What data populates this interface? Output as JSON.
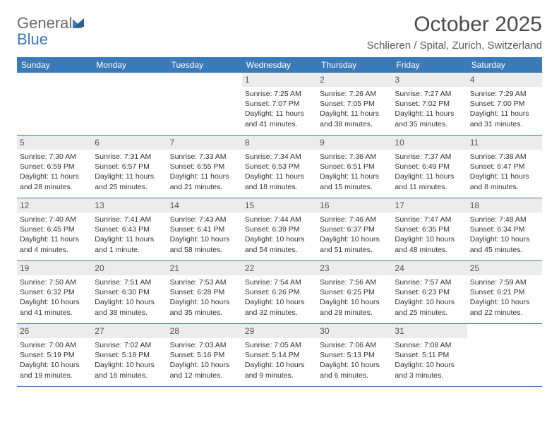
{
  "brand": {
    "name_part1": "General",
    "name_part2": "Blue",
    "color_general": "#6a6a6a",
    "color_blue": "#3a7ab8"
  },
  "title": "October 2025",
  "location": "Schlieren / Spital, Zurich, Switzerland",
  "colors": {
    "header_bar": "#3a7ab8",
    "day_num_bg": "#ececec",
    "text": "#333333",
    "border": "#3a7ab8"
  },
  "days_of_week": [
    "Sunday",
    "Monday",
    "Tuesday",
    "Wednesday",
    "Thursday",
    "Friday",
    "Saturday"
  ],
  "weeks": [
    [
      {
        "n": "",
        "sr": "",
        "ss": "",
        "dl": ""
      },
      {
        "n": "",
        "sr": "",
        "ss": "",
        "dl": ""
      },
      {
        "n": "",
        "sr": "",
        "ss": "",
        "dl": ""
      },
      {
        "n": "1",
        "sr": "Sunrise: 7:25 AM",
        "ss": "Sunset: 7:07 PM",
        "dl": "Daylight: 11 hours and 41 minutes."
      },
      {
        "n": "2",
        "sr": "Sunrise: 7:26 AM",
        "ss": "Sunset: 7:05 PM",
        "dl": "Daylight: 11 hours and 38 minutes."
      },
      {
        "n": "3",
        "sr": "Sunrise: 7:27 AM",
        "ss": "Sunset: 7:02 PM",
        "dl": "Daylight: 11 hours and 35 minutes."
      },
      {
        "n": "4",
        "sr": "Sunrise: 7:29 AM",
        "ss": "Sunset: 7:00 PM",
        "dl": "Daylight: 11 hours and 31 minutes."
      }
    ],
    [
      {
        "n": "5",
        "sr": "Sunrise: 7:30 AM",
        "ss": "Sunset: 6:59 PM",
        "dl": "Daylight: 11 hours and 28 minutes."
      },
      {
        "n": "6",
        "sr": "Sunrise: 7:31 AM",
        "ss": "Sunset: 6:57 PM",
        "dl": "Daylight: 11 hours and 25 minutes."
      },
      {
        "n": "7",
        "sr": "Sunrise: 7:33 AM",
        "ss": "Sunset: 6:55 PM",
        "dl": "Daylight: 11 hours and 21 minutes."
      },
      {
        "n": "8",
        "sr": "Sunrise: 7:34 AM",
        "ss": "Sunset: 6:53 PM",
        "dl": "Daylight: 11 hours and 18 minutes."
      },
      {
        "n": "9",
        "sr": "Sunrise: 7:36 AM",
        "ss": "Sunset: 6:51 PM",
        "dl": "Daylight: 11 hours and 15 minutes."
      },
      {
        "n": "10",
        "sr": "Sunrise: 7:37 AM",
        "ss": "Sunset: 6:49 PM",
        "dl": "Daylight: 11 hours and 11 minutes."
      },
      {
        "n": "11",
        "sr": "Sunrise: 7:38 AM",
        "ss": "Sunset: 6:47 PM",
        "dl": "Daylight: 11 hours and 8 minutes."
      }
    ],
    [
      {
        "n": "12",
        "sr": "Sunrise: 7:40 AM",
        "ss": "Sunset: 6:45 PM",
        "dl": "Daylight: 11 hours and 4 minutes."
      },
      {
        "n": "13",
        "sr": "Sunrise: 7:41 AM",
        "ss": "Sunset: 6:43 PM",
        "dl": "Daylight: 11 hours and 1 minute."
      },
      {
        "n": "14",
        "sr": "Sunrise: 7:43 AM",
        "ss": "Sunset: 6:41 PM",
        "dl": "Daylight: 10 hours and 58 minutes."
      },
      {
        "n": "15",
        "sr": "Sunrise: 7:44 AM",
        "ss": "Sunset: 6:39 PM",
        "dl": "Daylight: 10 hours and 54 minutes."
      },
      {
        "n": "16",
        "sr": "Sunrise: 7:46 AM",
        "ss": "Sunset: 6:37 PM",
        "dl": "Daylight: 10 hours and 51 minutes."
      },
      {
        "n": "17",
        "sr": "Sunrise: 7:47 AM",
        "ss": "Sunset: 6:35 PM",
        "dl": "Daylight: 10 hours and 48 minutes."
      },
      {
        "n": "18",
        "sr": "Sunrise: 7:48 AM",
        "ss": "Sunset: 6:34 PM",
        "dl": "Daylight: 10 hours and 45 minutes."
      }
    ],
    [
      {
        "n": "19",
        "sr": "Sunrise: 7:50 AM",
        "ss": "Sunset: 6:32 PM",
        "dl": "Daylight: 10 hours and 41 minutes."
      },
      {
        "n": "20",
        "sr": "Sunrise: 7:51 AM",
        "ss": "Sunset: 6:30 PM",
        "dl": "Daylight: 10 hours and 38 minutes."
      },
      {
        "n": "21",
        "sr": "Sunrise: 7:53 AM",
        "ss": "Sunset: 6:28 PM",
        "dl": "Daylight: 10 hours and 35 minutes."
      },
      {
        "n": "22",
        "sr": "Sunrise: 7:54 AM",
        "ss": "Sunset: 6:26 PM",
        "dl": "Daylight: 10 hours and 32 minutes."
      },
      {
        "n": "23",
        "sr": "Sunrise: 7:56 AM",
        "ss": "Sunset: 6:25 PM",
        "dl": "Daylight: 10 hours and 28 minutes."
      },
      {
        "n": "24",
        "sr": "Sunrise: 7:57 AM",
        "ss": "Sunset: 6:23 PM",
        "dl": "Daylight: 10 hours and 25 minutes."
      },
      {
        "n": "25",
        "sr": "Sunrise: 7:59 AM",
        "ss": "Sunset: 6:21 PM",
        "dl": "Daylight: 10 hours and 22 minutes."
      }
    ],
    [
      {
        "n": "26",
        "sr": "Sunrise: 7:00 AM",
        "ss": "Sunset: 5:19 PM",
        "dl": "Daylight: 10 hours and 19 minutes."
      },
      {
        "n": "27",
        "sr": "Sunrise: 7:02 AM",
        "ss": "Sunset: 5:18 PM",
        "dl": "Daylight: 10 hours and 16 minutes."
      },
      {
        "n": "28",
        "sr": "Sunrise: 7:03 AM",
        "ss": "Sunset: 5:16 PM",
        "dl": "Daylight: 10 hours and 12 minutes."
      },
      {
        "n": "29",
        "sr": "Sunrise: 7:05 AM",
        "ss": "Sunset: 5:14 PM",
        "dl": "Daylight: 10 hours and 9 minutes."
      },
      {
        "n": "30",
        "sr": "Sunrise: 7:06 AM",
        "ss": "Sunset: 5:13 PM",
        "dl": "Daylight: 10 hours and 6 minutes."
      },
      {
        "n": "31",
        "sr": "Sunrise: 7:08 AM",
        "ss": "Sunset: 5:11 PM",
        "dl": "Daylight: 10 hours and 3 minutes."
      },
      {
        "n": "",
        "sr": "",
        "ss": "",
        "dl": ""
      }
    ]
  ]
}
